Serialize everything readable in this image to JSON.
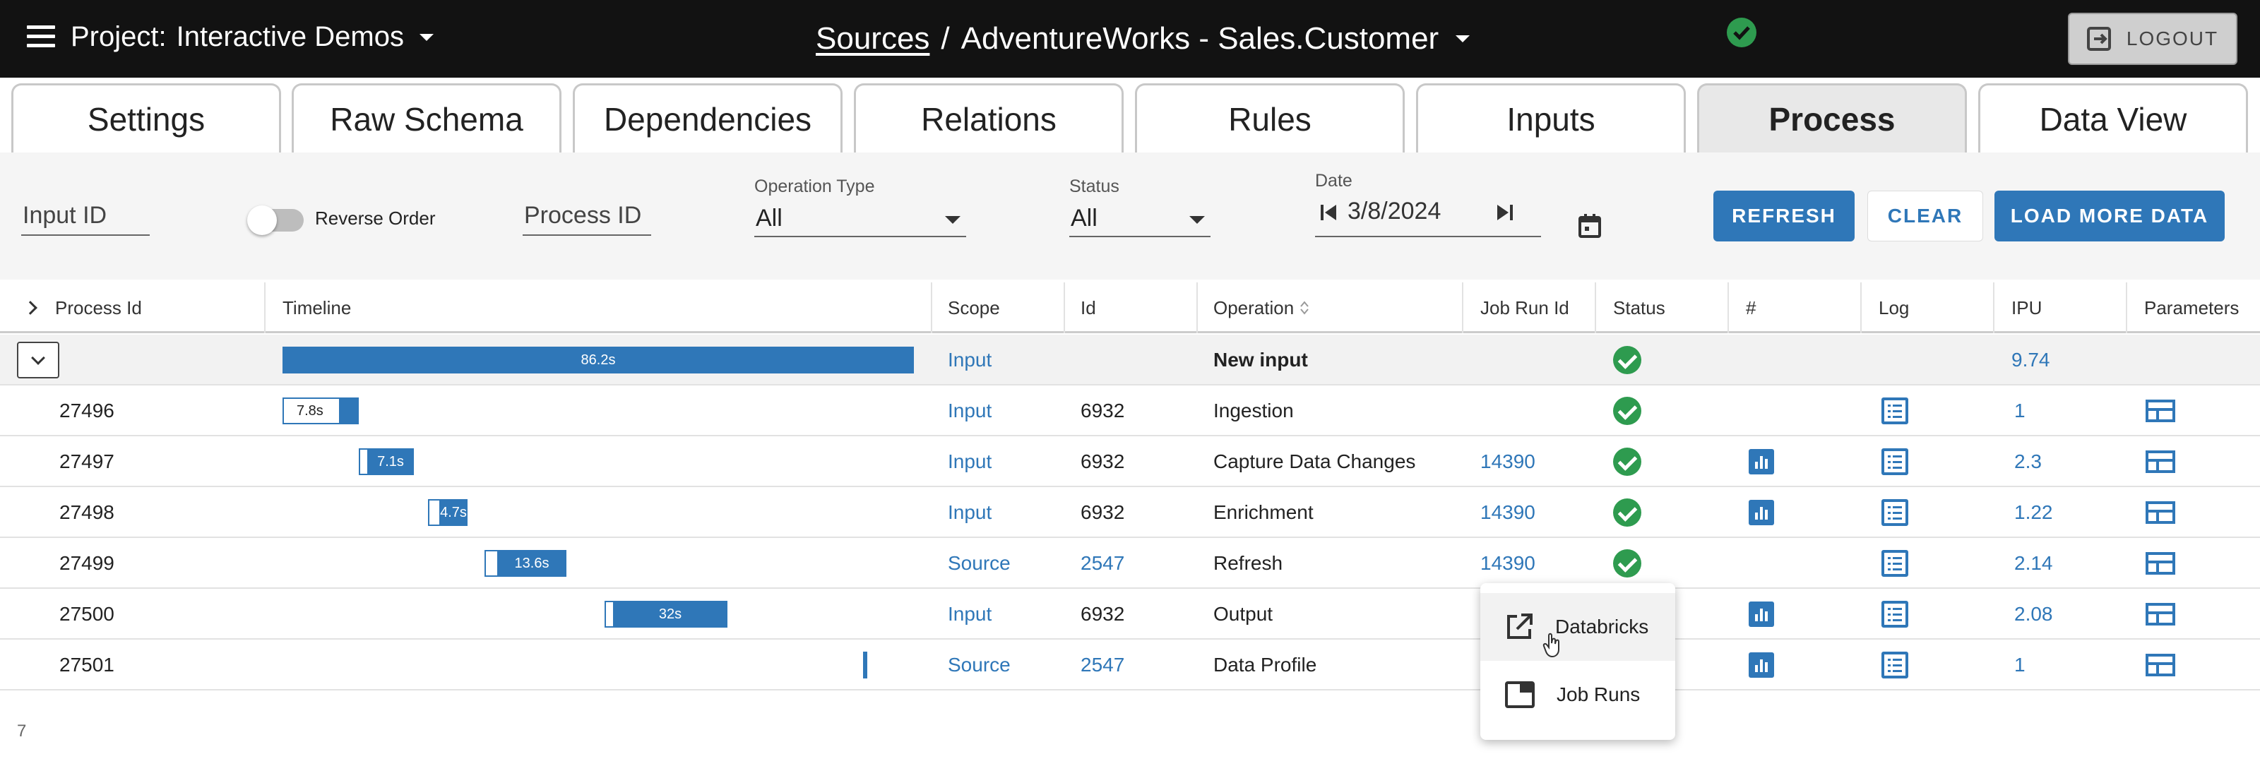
{
  "header": {
    "project_label": "Project:",
    "project_name": "Interactive Demos",
    "crumb_link": "Sources",
    "crumb_sep": "/",
    "crumb_current": "AdventureWorks - Sales.Customer",
    "logout_label": "LOGOUT"
  },
  "tabs": [
    {
      "label": "Settings"
    },
    {
      "label": "Raw Schema"
    },
    {
      "label": "Dependencies"
    },
    {
      "label": "Relations"
    },
    {
      "label": "Rules"
    },
    {
      "label": "Inputs"
    },
    {
      "label": "Process",
      "active": true
    },
    {
      "label": "Data View"
    }
  ],
  "filters": {
    "input_id_label": "Input ID",
    "reverse_order_label": "Reverse Order",
    "process_id_label": "Process ID",
    "operation_type_label": "Operation Type",
    "operation_type_value": "All",
    "status_label": "Status",
    "status_value": "All",
    "date_label": "Date",
    "date_value": "3/8/2024",
    "refresh_label": "REFRESH",
    "clear_label": "CLEAR",
    "load_more_label": "LOAD MORE DATA"
  },
  "table": {
    "columns": [
      "Process Id",
      "Timeline",
      "Scope",
      "Id",
      "Operation",
      "Job Run Id",
      "Status",
      "#",
      "Log",
      "IPU",
      "Parameters"
    ],
    "group": {
      "timeline": "86.2s",
      "scope": "Input",
      "operation": "New input",
      "ipu": "9.74"
    },
    "rows": [
      {
        "process_id": "27496",
        "timeline": "7.8s",
        "scope": "Input",
        "id": "6932",
        "operation": "Ingestion",
        "job_run_id": "",
        "ipu": "1",
        "chart": false,
        "status": true
      },
      {
        "process_id": "27497",
        "timeline": "7.1s",
        "scope": "Input",
        "id": "6932",
        "operation": "Capture Data Changes",
        "job_run_id": "14390",
        "ipu": "2.3",
        "chart": true,
        "status": true
      },
      {
        "process_id": "27498",
        "timeline": "4.7s",
        "scope": "Input",
        "id": "6932",
        "operation": "Enrichment",
        "job_run_id": "14390",
        "ipu": "1.22",
        "chart": true,
        "status": true
      },
      {
        "process_id": "27499",
        "timeline": "13.6s",
        "scope": "Source",
        "id": "2547",
        "operation": "Refresh",
        "job_run_id": "14390",
        "ipu": "2.14",
        "chart": false,
        "status": true
      },
      {
        "process_id": "27500",
        "timeline": "32s",
        "scope": "Input",
        "id": "6932",
        "operation": "Output",
        "job_run_id": "",
        "ipu": "2.08",
        "chart": true,
        "status": false
      },
      {
        "process_id": "27501",
        "timeline": "",
        "scope": "Source",
        "id": "2547",
        "operation": "Data Profile",
        "job_run_id": "",
        "ipu": "1",
        "chart": true,
        "status": false
      }
    ],
    "row_count": "7"
  },
  "popup_menu": {
    "items": [
      {
        "label": "Databricks",
        "icon": "open-external-icon"
      },
      {
        "label": "Job Runs",
        "icon": "window-icon"
      }
    ]
  },
  "colors": {
    "accent": "#2f77b8",
    "success": "#2e9b4f",
    "topbar": "#121212"
  }
}
